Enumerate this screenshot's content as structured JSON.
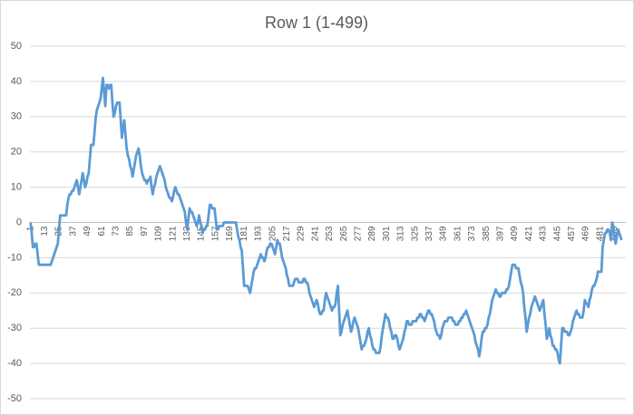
{
  "chart_data": {
    "type": "line",
    "title": "Row 1 (1-499)",
    "categories": [
      "1",
      null,
      null,
      null,
      null,
      null,
      null,
      null,
      null,
      null,
      null,
      null,
      "13",
      null,
      null,
      null,
      null,
      null,
      null,
      null,
      null,
      null,
      null,
      null,
      "25",
      null,
      null,
      null,
      null,
      null,
      null,
      null,
      null,
      null,
      null,
      null,
      "37",
      null,
      null,
      null,
      null,
      null,
      null,
      null,
      null,
      null,
      null,
      null,
      "49",
      null,
      null,
      null,
      null,
      null,
      null,
      null,
      null,
      null,
      null,
      null,
      "61",
      null,
      null,
      null,
      null,
      null,
      null,
      null,
      null,
      null,
      null,
      null,
      "73",
      null,
      null,
      null,
      null,
      null,
      null,
      null,
      null,
      null,
      null,
      null,
      "85",
      null,
      null,
      null,
      null,
      null,
      null,
      null,
      null,
      null,
      null,
      null,
      "97",
      null,
      null,
      null,
      null,
      null,
      null,
      null,
      null,
      null,
      null,
      null,
      "109",
      null,
      null,
      null,
      null,
      null,
      null,
      null,
      null,
      null,
      null,
      null,
      "121",
      null,
      null,
      null,
      null,
      null,
      null,
      null,
      null,
      null,
      null,
      null,
      "133",
      null,
      null,
      null,
      null,
      null,
      null,
      null,
      null,
      null,
      null,
      null,
      "145",
      null,
      null,
      null,
      null,
      null,
      null,
      null,
      null,
      null,
      null,
      null,
      "157",
      null,
      null,
      null,
      null,
      null,
      null,
      null,
      null,
      null,
      null,
      null,
      "169",
      null,
      null,
      null,
      null,
      null,
      null,
      null,
      null,
      null,
      null,
      null,
      "181",
      null,
      null,
      null,
      null,
      null,
      null,
      null,
      null,
      null,
      null,
      null,
      "193",
      null,
      null,
      null,
      null,
      null,
      null,
      null,
      null,
      null,
      null,
      null,
      "205",
      null,
      null,
      null,
      null,
      null,
      null,
      null,
      null,
      null,
      null,
      null,
      "217",
      null,
      null,
      null,
      null,
      null,
      null,
      null,
      null,
      null,
      null,
      null,
      "229",
      null,
      null,
      null,
      null,
      null,
      null,
      null,
      null,
      null,
      null,
      null,
      "241",
      null,
      null,
      null,
      null,
      null,
      null,
      null,
      null,
      null,
      null,
      null,
      "253",
      null,
      null,
      null,
      null,
      null,
      null,
      null,
      null,
      null,
      null,
      null,
      "265",
      null,
      null,
      null,
      null,
      null,
      null,
      null,
      null,
      null,
      null,
      null,
      "277",
      null,
      null,
      null,
      null,
      null,
      null,
      null,
      null,
      null,
      null,
      null,
      "289",
      null,
      null,
      null,
      null,
      null,
      null,
      null,
      null,
      null,
      null,
      null,
      "301",
      null,
      null,
      null,
      null,
      null,
      null,
      null,
      null,
      null,
      null,
      null,
      "313",
      null,
      null,
      null,
      null,
      null,
      null,
      null,
      null,
      null,
      null,
      null,
      "325",
      null,
      null,
      null,
      null,
      null,
      null,
      null,
      null,
      null,
      null,
      null,
      "337",
      null,
      null,
      null,
      null,
      null,
      null,
      null,
      null,
      null,
      null,
      null,
      "349",
      null,
      null,
      null,
      null,
      null,
      null,
      null,
      null,
      null,
      null,
      null,
      "361",
      null,
      null,
      null,
      null,
      null,
      null,
      null,
      null,
      null,
      null,
      null,
      "373",
      null,
      null,
      null,
      null,
      null,
      null,
      null,
      null,
      null,
      null,
      null,
      "385",
      null,
      null,
      null,
      null,
      null,
      null,
      null,
      null,
      null,
      null,
      null,
      "397",
      null,
      null,
      null,
      null,
      null,
      null,
      null,
      null,
      null,
      null,
      null,
      "409",
      null,
      null,
      null,
      null,
      null,
      null,
      null,
      null,
      null,
      null,
      null,
      "421",
      null,
      null,
      null,
      null,
      null,
      null,
      null,
      null,
      null,
      null,
      null,
      "433",
      null,
      null,
      null,
      null,
      null,
      null,
      null,
      null,
      null,
      null,
      null,
      "445",
      null,
      null,
      null,
      null,
      null,
      null,
      null,
      null,
      null,
      null,
      null,
      "457",
      null,
      null,
      null,
      null,
      null,
      null,
      null,
      null,
      null,
      null,
      null,
      "469",
      null,
      null,
      null,
      null,
      null,
      null,
      null,
      null,
      null,
      null,
      null,
      "481",
      null,
      null,
      null,
      null,
      null,
      null,
      null,
      null,
      null,
      null,
      null,
      "493",
      null,
      null,
      null,
      null,
      null,
      null
    ],
    "series": [
      {
        "color": "#5b9bd5",
        "values": [
          0,
          -3,
          -7,
          -7,
          -6,
          -6,
          -9,
          -12,
          -12,
          -12,
          -12,
          -12,
          -12,
          -12,
          -12,
          -12,
          -12,
          -12,
          -11,
          -10,
          -9,
          -8,
          -7,
          -6,
          -2,
          2,
          2,
          2,
          2,
          2,
          2,
          5,
          7,
          8,
          8,
          9,
          9,
          10,
          11,
          12,
          10,
          8,
          10,
          12,
          14,
          12,
          10,
          11,
          13,
          14,
          18,
          22,
          22,
          22,
          26,
          30,
          32,
          33,
          34,
          35,
          38,
          41,
          37,
          33,
          39,
          39,
          38,
          39,
          39,
          34,
          30,
          31,
          33,
          34,
          34,
          34,
          29,
          24,
          27,
          29,
          25,
          21,
          19,
          18,
          16,
          15,
          13,
          15,
          17,
          19,
          20,
          21,
          19,
          16,
          14,
          13,
          12,
          12,
          11,
          12,
          12,
          13,
          10,
          8,
          10,
          11,
          13,
          14,
          15,
          16,
          15,
          14,
          13,
          12,
          10,
          9,
          8,
          7,
          7,
          6,
          7,
          9,
          10,
          9,
          8,
          8,
          7,
          6,
          5,
          4,
          3,
          0,
          -2,
          1,
          4,
          3,
          3,
          2,
          1,
          0,
          -1,
          0,
          2,
          0,
          -1,
          -3,
          -2,
          -2,
          -1,
          -1,
          2,
          5,
          5,
          4,
          4,
          4,
          1,
          -2,
          -2,
          -1,
          -1,
          -1,
          -1,
          0,
          0,
          0,
          0,
          0,
          0,
          0,
          0,
          0,
          0,
          0,
          -2,
          -4,
          -5,
          -7,
          -8,
          -13,
          -18,
          -18,
          -18,
          -18,
          -19,
          -20,
          -18,
          -16,
          -14,
          -13,
          -13,
          -12,
          -11,
          -10,
          -9,
          -10,
          -10,
          -11,
          -10,
          -8,
          -7,
          -7,
          -6,
          -6,
          -7,
          -8,
          -9,
          -7,
          -5,
          -6,
          -6,
          -8,
          -10,
          -11,
          -12,
          -13,
          -15,
          -16,
          -18,
          -18,
          -18,
          -18,
          -17,
          -16,
          -16,
          -16,
          -17,
          -17,
          -17,
          -17,
          -16,
          -16,
          -17,
          -17,
          -18,
          -20,
          -21,
          -22,
          -23,
          -24,
          -23,
          -22,
          -23,
          -25,
          -26,
          -26,
          -25,
          -25,
          -22,
          -20,
          -21,
          -22,
          -23,
          -24,
          -25,
          -24,
          -24,
          -23,
          -20,
          -18,
          -25,
          -32,
          -31,
          -29,
          -28,
          -27,
          -26,
          -25,
          -27,
          -29,
          -31,
          -30,
          -28,
          -27,
          -28,
          -29,
          -30,
          -32,
          -34,
          -36,
          -35,
          -35,
          -34,
          -33,
          -31,
          -30,
          -32,
          -33,
          -35,
          -36,
          -36,
          -37,
          -37,
          -37,
          -37,
          -35,
          -32,
          -30,
          -28,
          -26,
          -27,
          -27,
          -28,
          -30,
          -31,
          -33,
          -33,
          -32,
          -32,
          -33,
          -35,
          -36,
          -35,
          -34,
          -33,
          -31,
          -30,
          -28,
          -28,
          -29,
          -29,
          -29,
          -28,
          -28,
          -28,
          -28,
          -27,
          -27,
          -26,
          -26,
          -27,
          -27,
          -28,
          -27,
          -26,
          -25,
          -25,
          -26,
          -26,
          -27,
          -28,
          -30,
          -31,
          -32,
          -32,
          -33,
          -32,
          -30,
          -29,
          -28,
          -28,
          -28,
          -27,
          -27,
          -27,
          -27,
          -28,
          -28,
          -29,
          -29,
          -29,
          -28,
          -28,
          -27,
          -27,
          -26,
          -26,
          -25,
          -26,
          -27,
          -28,
          -29,
          -30,
          -31,
          -32,
          -34,
          -35,
          -36,
          -38,
          -36,
          -33,
          -31,
          -31,
          -30,
          -30,
          -29,
          -27,
          -26,
          -24,
          -22,
          -21,
          -20,
          -19,
          -20,
          -20,
          -21,
          -21,
          -20,
          -20,
          -20,
          -20,
          -19,
          -19,
          -18,
          -16,
          -14,
          -12,
          -12,
          -12,
          -13,
          -13,
          -13,
          -15,
          -17,
          -18,
          -20,
          -24,
          -27,
          -31,
          -29,
          -27,
          -26,
          -24,
          -23,
          -22,
          -21,
          -22,
          -23,
          -24,
          -25,
          -24,
          -23,
          -22,
          -26,
          -29,
          -33,
          -32,
          -30,
          -32,
          -33,
          -35,
          -35,
          -36,
          -36,
          -37,
          -39,
          -40,
          -35,
          -30,
          -30,
          -31,
          -31,
          -31,
          -32,
          -32,
          -31,
          -30,
          -28,
          -27,
          -26,
          -25,
          -26,
          -26,
          -27,
          -27,
          -27,
          -25,
          -22,
          -23,
          -23,
          -24,
          -22,
          -21,
          -19,
          -18,
          -18,
          -17,
          -16,
          -14,
          -14,
          -14,
          -14,
          -7,
          -5,
          -3,
          -3,
          -2,
          -2,
          -3,
          -5,
          0,
          -1,
          -4,
          -6,
          -4,
          -2,
          -3,
          -4,
          -5
        ]
      }
    ],
    "ylim": [
      -50,
      50
    ],
    "yticks": [
      -50,
      -40,
      -30,
      -20,
      -10,
      0,
      10,
      20,
      30,
      40,
      50
    ],
    "grid": true
  }
}
